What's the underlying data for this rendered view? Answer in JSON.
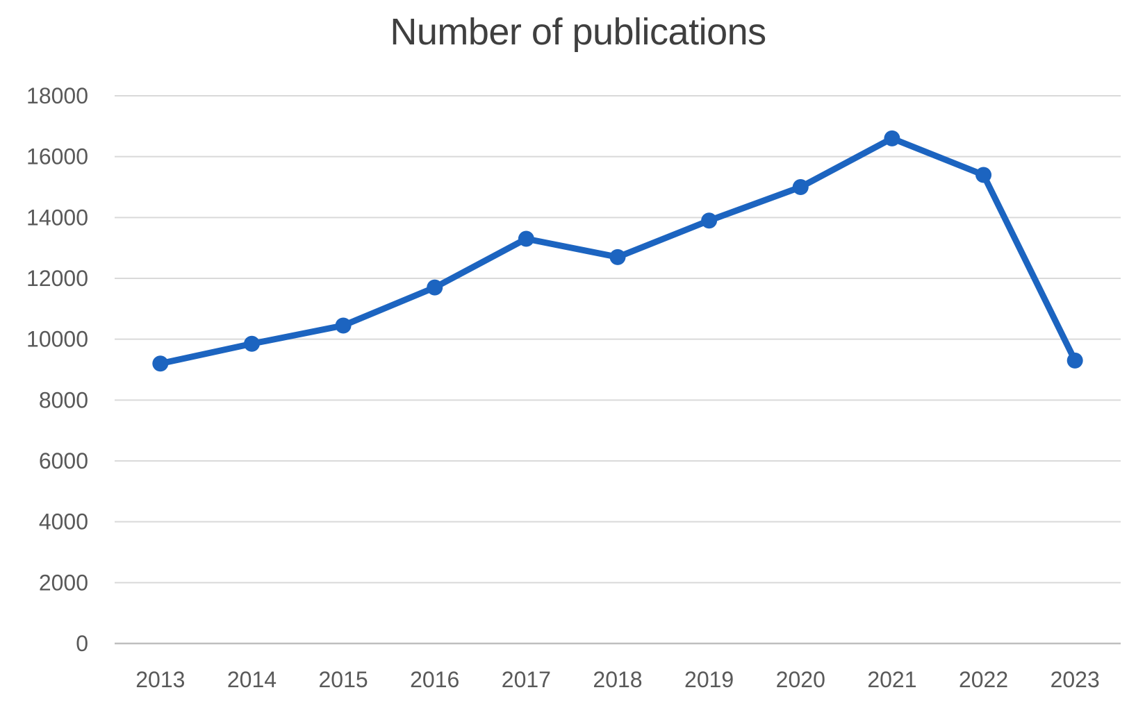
{
  "chart_data": {
    "type": "line",
    "title": "Number of publications",
    "categories": [
      "2013",
      "2014",
      "2015",
      "2016",
      "2017",
      "2018",
      "2019",
      "2020",
      "2021",
      "2022",
      "2023"
    ],
    "series": [
      {
        "name": "Number of publications",
        "values": [
          9200,
          9850,
          10450,
          11700,
          13300,
          12700,
          13900,
          15000,
          16600,
          15400,
          9300
        ]
      }
    ],
    "xlabel": "",
    "ylabel": "",
    "ylim": [
      0,
      18000
    ],
    "y_ticks": [
      0,
      2000,
      4000,
      6000,
      8000,
      10000,
      12000,
      14000,
      16000,
      18000
    ],
    "grid": "horizontal-only",
    "legend_position": "none",
    "marker_shape": "circle",
    "colors": {
      "line": "#1C64C0",
      "marker": "#1C64C0",
      "gridline": "#D9D9D9",
      "axis_line": "#BFBFBF",
      "tick_label": "#595959",
      "title": "#3F3F3F",
      "background": "#FFFFFF"
    }
  }
}
